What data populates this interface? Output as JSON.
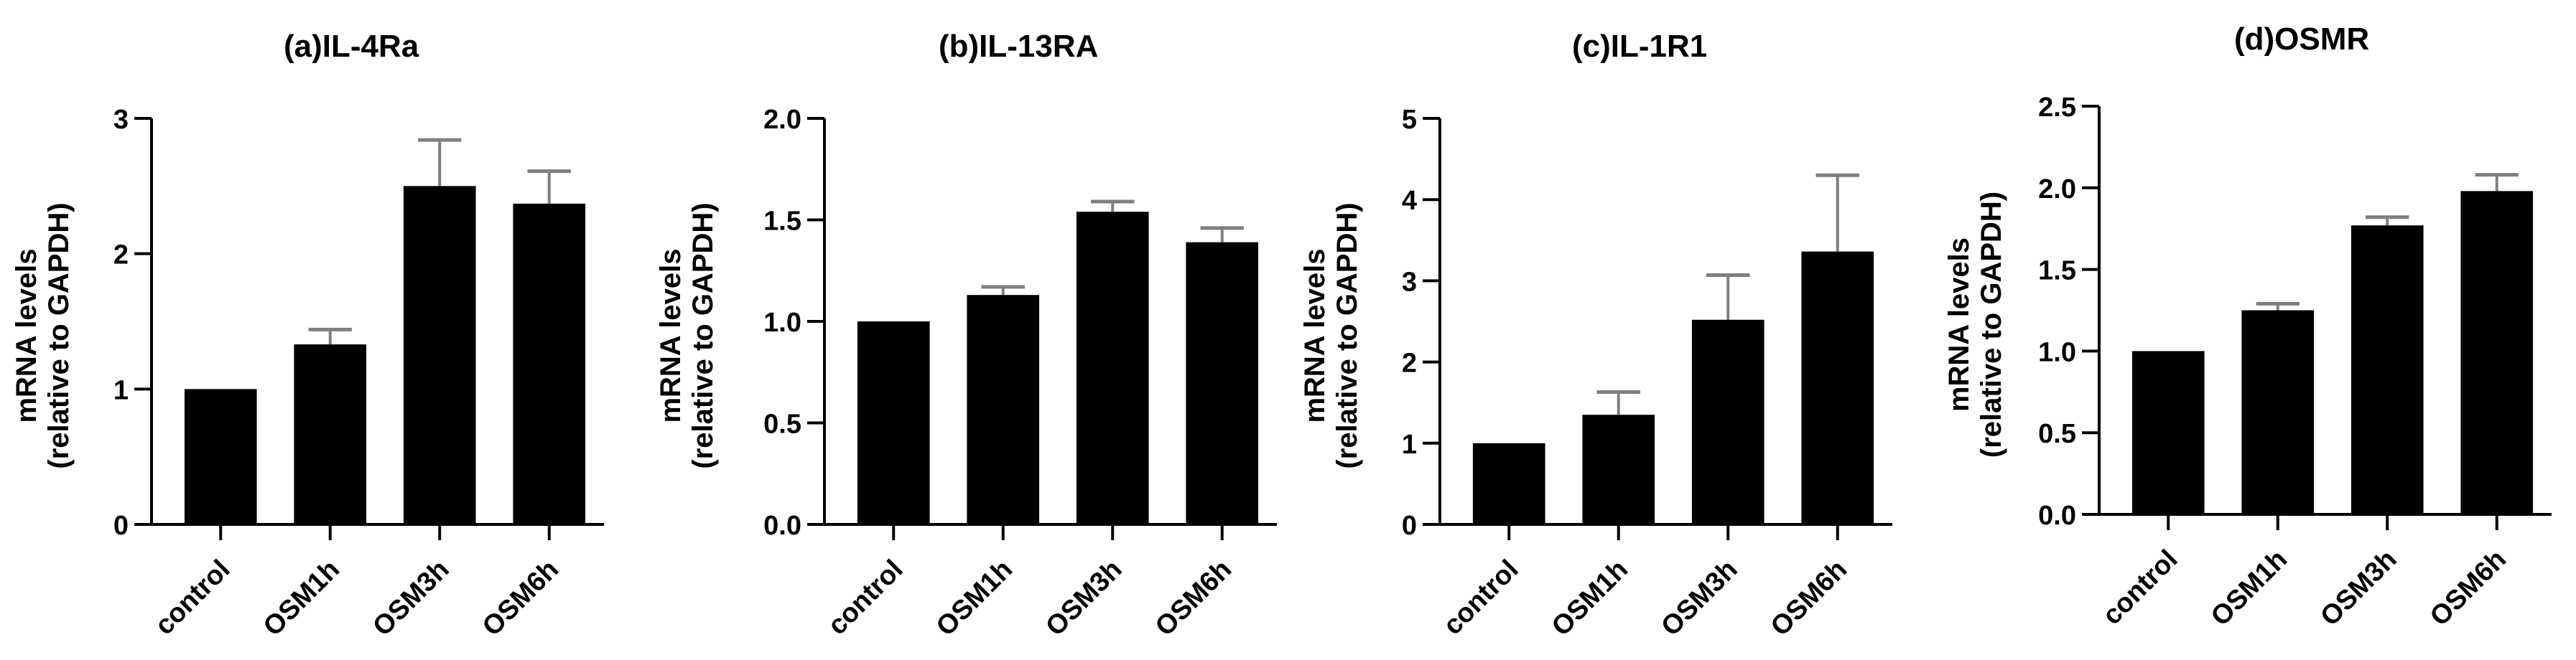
{
  "figure": {
    "ylabel_line1": "mRNA levels",
    "ylabel_line2": "(relative to GAPDH)",
    "categories": [
      "control",
      "OSM1h",
      "OSM3h",
      "OSM6h"
    ],
    "bar_color": "#000000",
    "error_bar_color": "#7f7f7f"
  },
  "panels": [
    {
      "title": "(a)IL-4Ra"
    },
    {
      "title": "(b)IL-13RA"
    },
    {
      "title": "(c)IL-1R1"
    },
    {
      "title": "(d)OSMR"
    }
  ],
  "chart_data": [
    {
      "type": "bar",
      "title": "(a)IL-4Ra",
      "xlabel": "",
      "ylabel": "mRNA levels (relative to GAPDH)",
      "categories": [
        "control",
        "OSM1h",
        "OSM3h",
        "OSM6h"
      ],
      "values": [
        1.0,
        1.33,
        2.5,
        2.37
      ],
      "error_upper": [
        1.0,
        1.44,
        2.84,
        2.61
      ],
      "ylim": [
        0,
        3
      ],
      "yticks": [
        0,
        1,
        2,
        3
      ],
      "ytick_labels": [
        "0",
        "1",
        "2",
        "3"
      ],
      "grid": false
    },
    {
      "type": "bar",
      "title": "(b)IL-13RA",
      "xlabel": "",
      "ylabel": "mRNA levels (relative to GAPDH)",
      "categories": [
        "control",
        "OSM1h",
        "OSM3h",
        "OSM6h"
      ],
      "values": [
        1.0,
        1.13,
        1.54,
        1.39
      ],
      "error_upper": [
        1.0,
        1.17,
        1.59,
        1.46
      ],
      "ylim": [
        0,
        2.0
      ],
      "yticks": [
        0,
        0.5,
        1.0,
        1.5,
        2.0
      ],
      "ytick_labels": [
        "0.0",
        "0.5",
        "1.0",
        "1.5",
        "2.0"
      ],
      "grid": false
    },
    {
      "type": "bar",
      "title": "(c)IL-1R1",
      "xlabel": "",
      "ylabel": "mRNA levels (relative to GAPDH)",
      "categories": [
        "control",
        "OSM1h",
        "OSM3h",
        "OSM6h"
      ],
      "values": [
        1.0,
        1.35,
        2.52,
        3.36
      ],
      "error_upper": [
        1.0,
        1.63,
        3.07,
        4.3
      ],
      "ylim": [
        0,
        5
      ],
      "yticks": [
        0,
        1,
        2,
        3,
        4,
        5
      ],
      "ytick_labels": [
        "0",
        "1",
        "2",
        "3",
        "4",
        "5"
      ],
      "grid": false
    },
    {
      "type": "bar",
      "title": "(d)OSMR",
      "xlabel": "",
      "ylabel": "mRNA levels (relative to GAPDH)",
      "categories": [
        "control",
        "OSM1h",
        "OSM3h",
        "OSM6h"
      ],
      "values": [
        1.0,
        1.25,
        1.77,
        1.98
      ],
      "error_upper": [
        1.0,
        1.29,
        1.82,
        2.08
      ],
      "ylim": [
        0,
        2.5
      ],
      "yticks": [
        0,
        0.5,
        1.0,
        1.5,
        2.0,
        2.5
      ],
      "ytick_labels": [
        "0.0",
        "0.5",
        "1.0",
        "1.5",
        "2.0",
        "2.5"
      ],
      "grid": false
    }
  ]
}
